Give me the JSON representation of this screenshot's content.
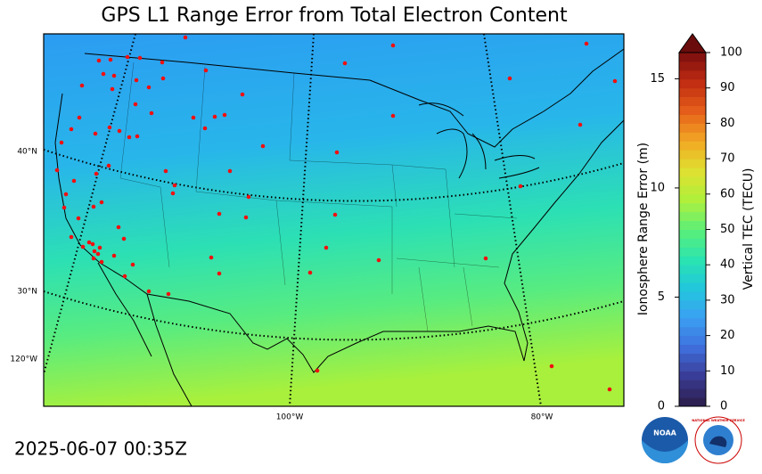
{
  "title": "GPS L1 Range Error from Total Electron Content",
  "timestamp": "2025-06-07 00:35Z",
  "map": {
    "lat_labels": [
      "40°N",
      "30°N"
    ],
    "lon_labels_left": [
      "120°W"
    ],
    "lon_labels_bottom": [
      "100°W",
      "80°W"
    ]
  },
  "colorbar": {
    "tec_label": "Vertical TEC (TECU)",
    "range_label": "Ionosphere Range Error (m)",
    "tec_lim": [
      0,
      100
    ],
    "tec_ticks": [
      0,
      10,
      20,
      30,
      40,
      50,
      60,
      70,
      80,
      90,
      100
    ],
    "range_lim": [
      0,
      16.2
    ],
    "range_ticks": [
      0,
      5,
      10,
      15
    ],
    "colormap": [
      "#2b1d48",
      "#3a3a93",
      "#3f6fdc",
      "#3b9ff2",
      "#22c7dc",
      "#2ae4b0",
      "#5cef78",
      "#b0f03c",
      "#dfe030",
      "#f2a824",
      "#e6601a",
      "#c02c12",
      "#7a0e0e"
    ],
    "extend_color": "#6b0c0c"
  },
  "logos": {
    "noaa": "NOAA",
    "nws": "NATIONAL WEATHER SERVICE"
  }
}
